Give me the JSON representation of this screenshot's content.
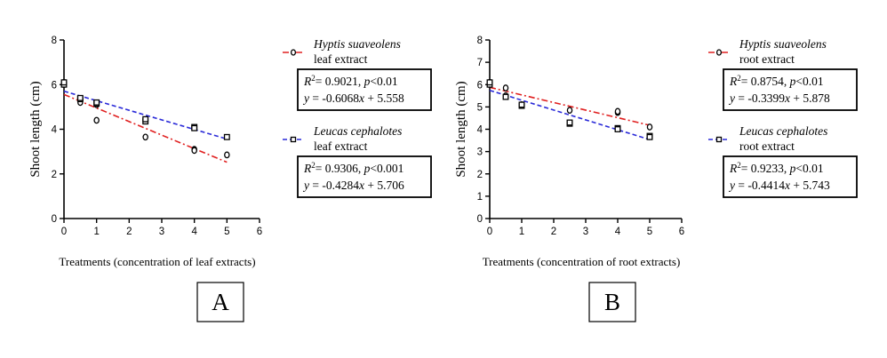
{
  "colors": {
    "hyptis": "#e02020",
    "leucas": "#2a2ad8"
  },
  "chart_data": [
    {
      "type": "scatter",
      "panel_label": "A",
      "xlabel": "Treatments (concentration of leaf extracts)",
      "ylabel": "Shoot length (cm)",
      "xlim": [
        0,
        6
      ],
      "ylim": [
        0,
        8
      ],
      "xticks": [
        0,
        1,
        2,
        3,
        4,
        5,
        6
      ],
      "yticks": [
        0,
        2,
        4,
        6,
        8
      ],
      "series": [
        {
          "key": "hyptis",
          "name_italic": "Hyptis suaveolens",
          "name_sub": "leaf extract",
          "marker": "circle",
          "points": [
            [
              0,
              6.0
            ],
            [
              0,
              6.1
            ],
            [
              0.5,
              5.3
            ],
            [
              0.5,
              5.2
            ],
            [
              1,
              5.1
            ],
            [
              1,
              4.4
            ],
            [
              2.5,
              3.65
            ],
            [
              4,
              3.1
            ],
            [
              4,
              3.05
            ],
            [
              5,
              2.85
            ]
          ],
          "fit": {
            "slope": -0.6068,
            "intercept": 5.558,
            "x": [
              0,
              5
            ]
          },
          "stats": {
            "r2": "= 0.9021, ",
            "p": "<0.01",
            "eq_rest": " + 5.558",
            "eq_slope": "= -0.6068"
          }
        },
        {
          "key": "leucas",
          "name_italic": "Leucas cephalotes",
          "name_sub": "leaf extract",
          "marker": "square",
          "points": [
            [
              0,
              6.0
            ],
            [
              0,
              6.1
            ],
            [
              0.5,
              5.35
            ],
            [
              0.5,
              5.4
            ],
            [
              1,
              5.15
            ],
            [
              1,
              5.2
            ],
            [
              2.5,
              4.35
            ],
            [
              2.5,
              4.45
            ],
            [
              4,
              4.1
            ],
            [
              4,
              4.05
            ],
            [
              5,
              3.65
            ]
          ],
          "fit": {
            "slope": -0.4284,
            "intercept": 5.706,
            "x": [
              0,
              5
            ]
          },
          "stats": {
            "r2": "= 0.9306, ",
            "p": "<0.001",
            "eq_rest": " + 5.706",
            "eq_slope": "= -0.4284"
          }
        }
      ]
    },
    {
      "type": "scatter",
      "panel_label": "B",
      "xlabel": "Treatments (concentration of root extracts)",
      "ylabel": "Shoot length (cm)",
      "xlim": [
        0,
        6
      ],
      "ylim": [
        0,
        8
      ],
      "xticks": [
        0,
        1,
        2,
        3,
        4,
        5,
        6
      ],
      "yticks": [
        0,
        1,
        2,
        3,
        4,
        5,
        6,
        7,
        8
      ],
      "series": [
        {
          "key": "hyptis",
          "name_italic": "Hyptis suaveolens",
          "name_sub": "root extract",
          "marker": "circle",
          "points": [
            [
              0,
              6.0
            ],
            [
              0,
              6.1
            ],
            [
              0.5,
              5.85
            ],
            [
              0.5,
              5.5
            ],
            [
              1,
              5.1
            ],
            [
              2.5,
              4.85
            ],
            [
              4,
              4.75
            ],
            [
              4,
              4.8
            ],
            [
              5,
              4.1
            ]
          ],
          "fit": {
            "slope": -0.3399,
            "intercept": 5.878,
            "x": [
              0,
              5
            ]
          },
          "stats": {
            "r2": "= 0.8754, ",
            "p": "<0.01",
            "eq_rest": " + 5.878",
            "eq_slope": "= -0.3399"
          }
        },
        {
          "key": "leucas",
          "name_italic": "Leucas cephalotes",
          "name_sub": "root extract",
          "marker": "square",
          "points": [
            [
              0,
              6.0
            ],
            [
              0,
              6.1
            ],
            [
              0.5,
              5.45
            ],
            [
              1,
              5.05
            ],
            [
              1,
              5.1
            ],
            [
              2.5,
              4.25
            ],
            [
              2.5,
              4.3
            ],
            [
              4,
              4.05
            ],
            [
              4,
              4.0
            ],
            [
              5,
              3.7
            ],
            [
              5,
              3.65
            ]
          ],
          "fit": {
            "slope": -0.4414,
            "intercept": 5.743,
            "x": [
              0,
              5
            ]
          },
          "stats": {
            "r2": "= 0.9233, ",
            "p": "<0.01",
            "eq_rest": " + 5.743",
            "eq_slope": "= -0.4414"
          }
        }
      ]
    }
  ]
}
